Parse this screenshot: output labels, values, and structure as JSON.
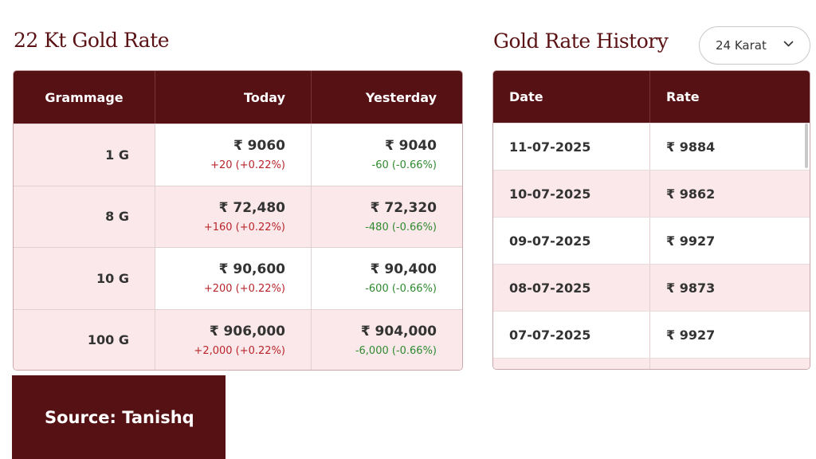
{
  "left": {
    "title": "22 Kt Gold Rate",
    "columns": [
      "Grammage",
      "Today",
      "Yesterday"
    ],
    "rows": [
      {
        "gram": "1 G",
        "today": "₹ 9060",
        "today_change": "+20 (+0.22%)",
        "yesterday": "₹ 9040",
        "yesterday_change": "-60 (-0.66%)"
      },
      {
        "gram": "8 G",
        "today": "₹ 72,480",
        "today_change": "+160 (+0.22%)",
        "yesterday": "₹ 72,320",
        "yesterday_change": "-480 (-0.66%)"
      },
      {
        "gram": "10 G",
        "today": "₹ 90,600",
        "today_change": "+200 (+0.22%)",
        "yesterday": "₹ 90,400",
        "yesterday_change": "-600 (-0.66%)"
      },
      {
        "gram": "100 G",
        "today": "₹ 906,000",
        "today_change": "+2,000 (+0.22%)",
        "yesterday": "₹ 904,000",
        "yesterday_change": "-6,000 (-0.66%)"
      }
    ]
  },
  "right": {
    "title": "Gold Rate History",
    "karat_select": {
      "value": "24 Karat"
    },
    "columns": [
      "Date",
      "Rate"
    ],
    "rows": [
      {
        "date": "11-07-2025",
        "rate": "₹ 9884"
      },
      {
        "date": "10-07-2025",
        "rate": "₹ 9862"
      },
      {
        "date": "09-07-2025",
        "rate": "₹ 9927"
      },
      {
        "date": "08-07-2025",
        "rate": "₹ 9873"
      },
      {
        "date": "07-07-2025",
        "rate": "₹ 9927"
      }
    ]
  },
  "source": "Source: Tanishq",
  "colors": {
    "header_bg": "#561115",
    "heading_text": "#5a1214",
    "row_tint": "#fbe8ea",
    "up": "#b8262b",
    "down": "#2f8a2f"
  },
  "icons": {
    "karat_dropdown": "chevron-down-icon"
  }
}
